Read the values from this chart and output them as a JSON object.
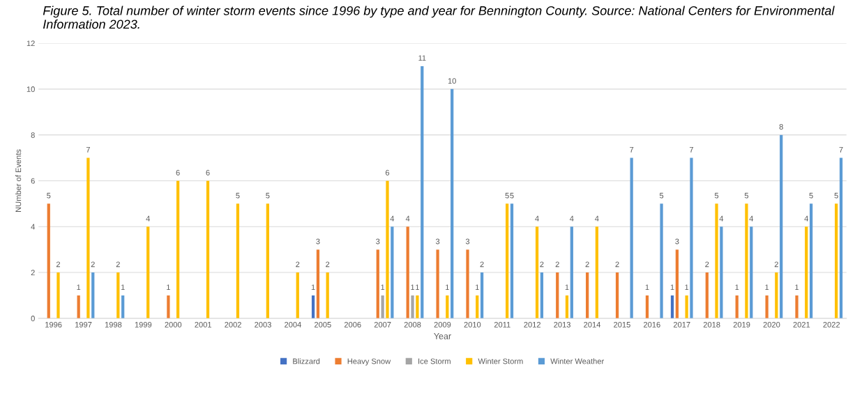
{
  "chart_data": {
    "type": "bar",
    "title": "Figure 5. Total number of winter storm events since 1996 by type and year for Bennington County. Source: National Centers for Environmental Information 2023.",
    "xlabel": "Year",
    "ylabel": "NUmber of Events",
    "categories": [
      "1996",
      "1997",
      "1998",
      "1999",
      "2000",
      "2001",
      "2002",
      "2003",
      "2004",
      "2005",
      "2006",
      "2007",
      "2008",
      "2009",
      "2010",
      "2011",
      "2012",
      "2013",
      "2014",
      "2015",
      "2016",
      "2017",
      "2018",
      "2019",
      "2020",
      "2021",
      "2022"
    ],
    "series": [
      {
        "name": "Blizzard",
        "color": "#4472c4",
        "values": [
          null,
          null,
          null,
          null,
          null,
          null,
          null,
          null,
          null,
          1,
          null,
          null,
          null,
          null,
          null,
          null,
          null,
          null,
          null,
          null,
          null,
          1,
          null,
          null,
          null,
          null,
          null
        ]
      },
      {
        "name": "Heavy Snow",
        "color": "#ed7d31",
        "values": [
          5,
          1,
          null,
          null,
          1,
          null,
          null,
          null,
          null,
          3,
          null,
          3,
          4,
          3,
          3,
          null,
          null,
          2,
          2,
          2,
          1,
          3,
          2,
          1,
          1,
          1,
          null
        ]
      },
      {
        "name": "Ice Storm",
        "color": "#a5a5a5",
        "values": [
          null,
          null,
          null,
          null,
          null,
          null,
          null,
          null,
          null,
          null,
          null,
          1,
          1,
          null,
          null,
          null,
          null,
          null,
          null,
          null,
          null,
          null,
          null,
          null,
          null,
          null,
          null
        ]
      },
      {
        "name": "Winter Storm",
        "color": "#ffc000",
        "values": [
          2,
          7,
          2,
          4,
          6,
          6,
          5,
          5,
          2,
          2,
          null,
          6,
          1,
          1,
          1,
          5,
          4,
          1,
          4,
          null,
          null,
          1,
          5,
          5,
          2,
          4,
          5
        ]
      },
      {
        "name": "Winter Weather",
        "color": "#5b9bd5",
        "values": [
          null,
          2,
          1,
          null,
          null,
          null,
          null,
          null,
          null,
          null,
          null,
          4,
          11,
          10,
          2,
          5,
          2,
          4,
          null,
          7,
          5,
          7,
          4,
          4,
          8,
          5,
          7
        ]
      }
    ],
    "ylim": [
      0,
      12
    ],
    "yticks": [
      0,
      2,
      4,
      6,
      8,
      10,
      12
    ],
    "grid": "y",
    "legend": "bottom",
    "data_labels": true
  }
}
